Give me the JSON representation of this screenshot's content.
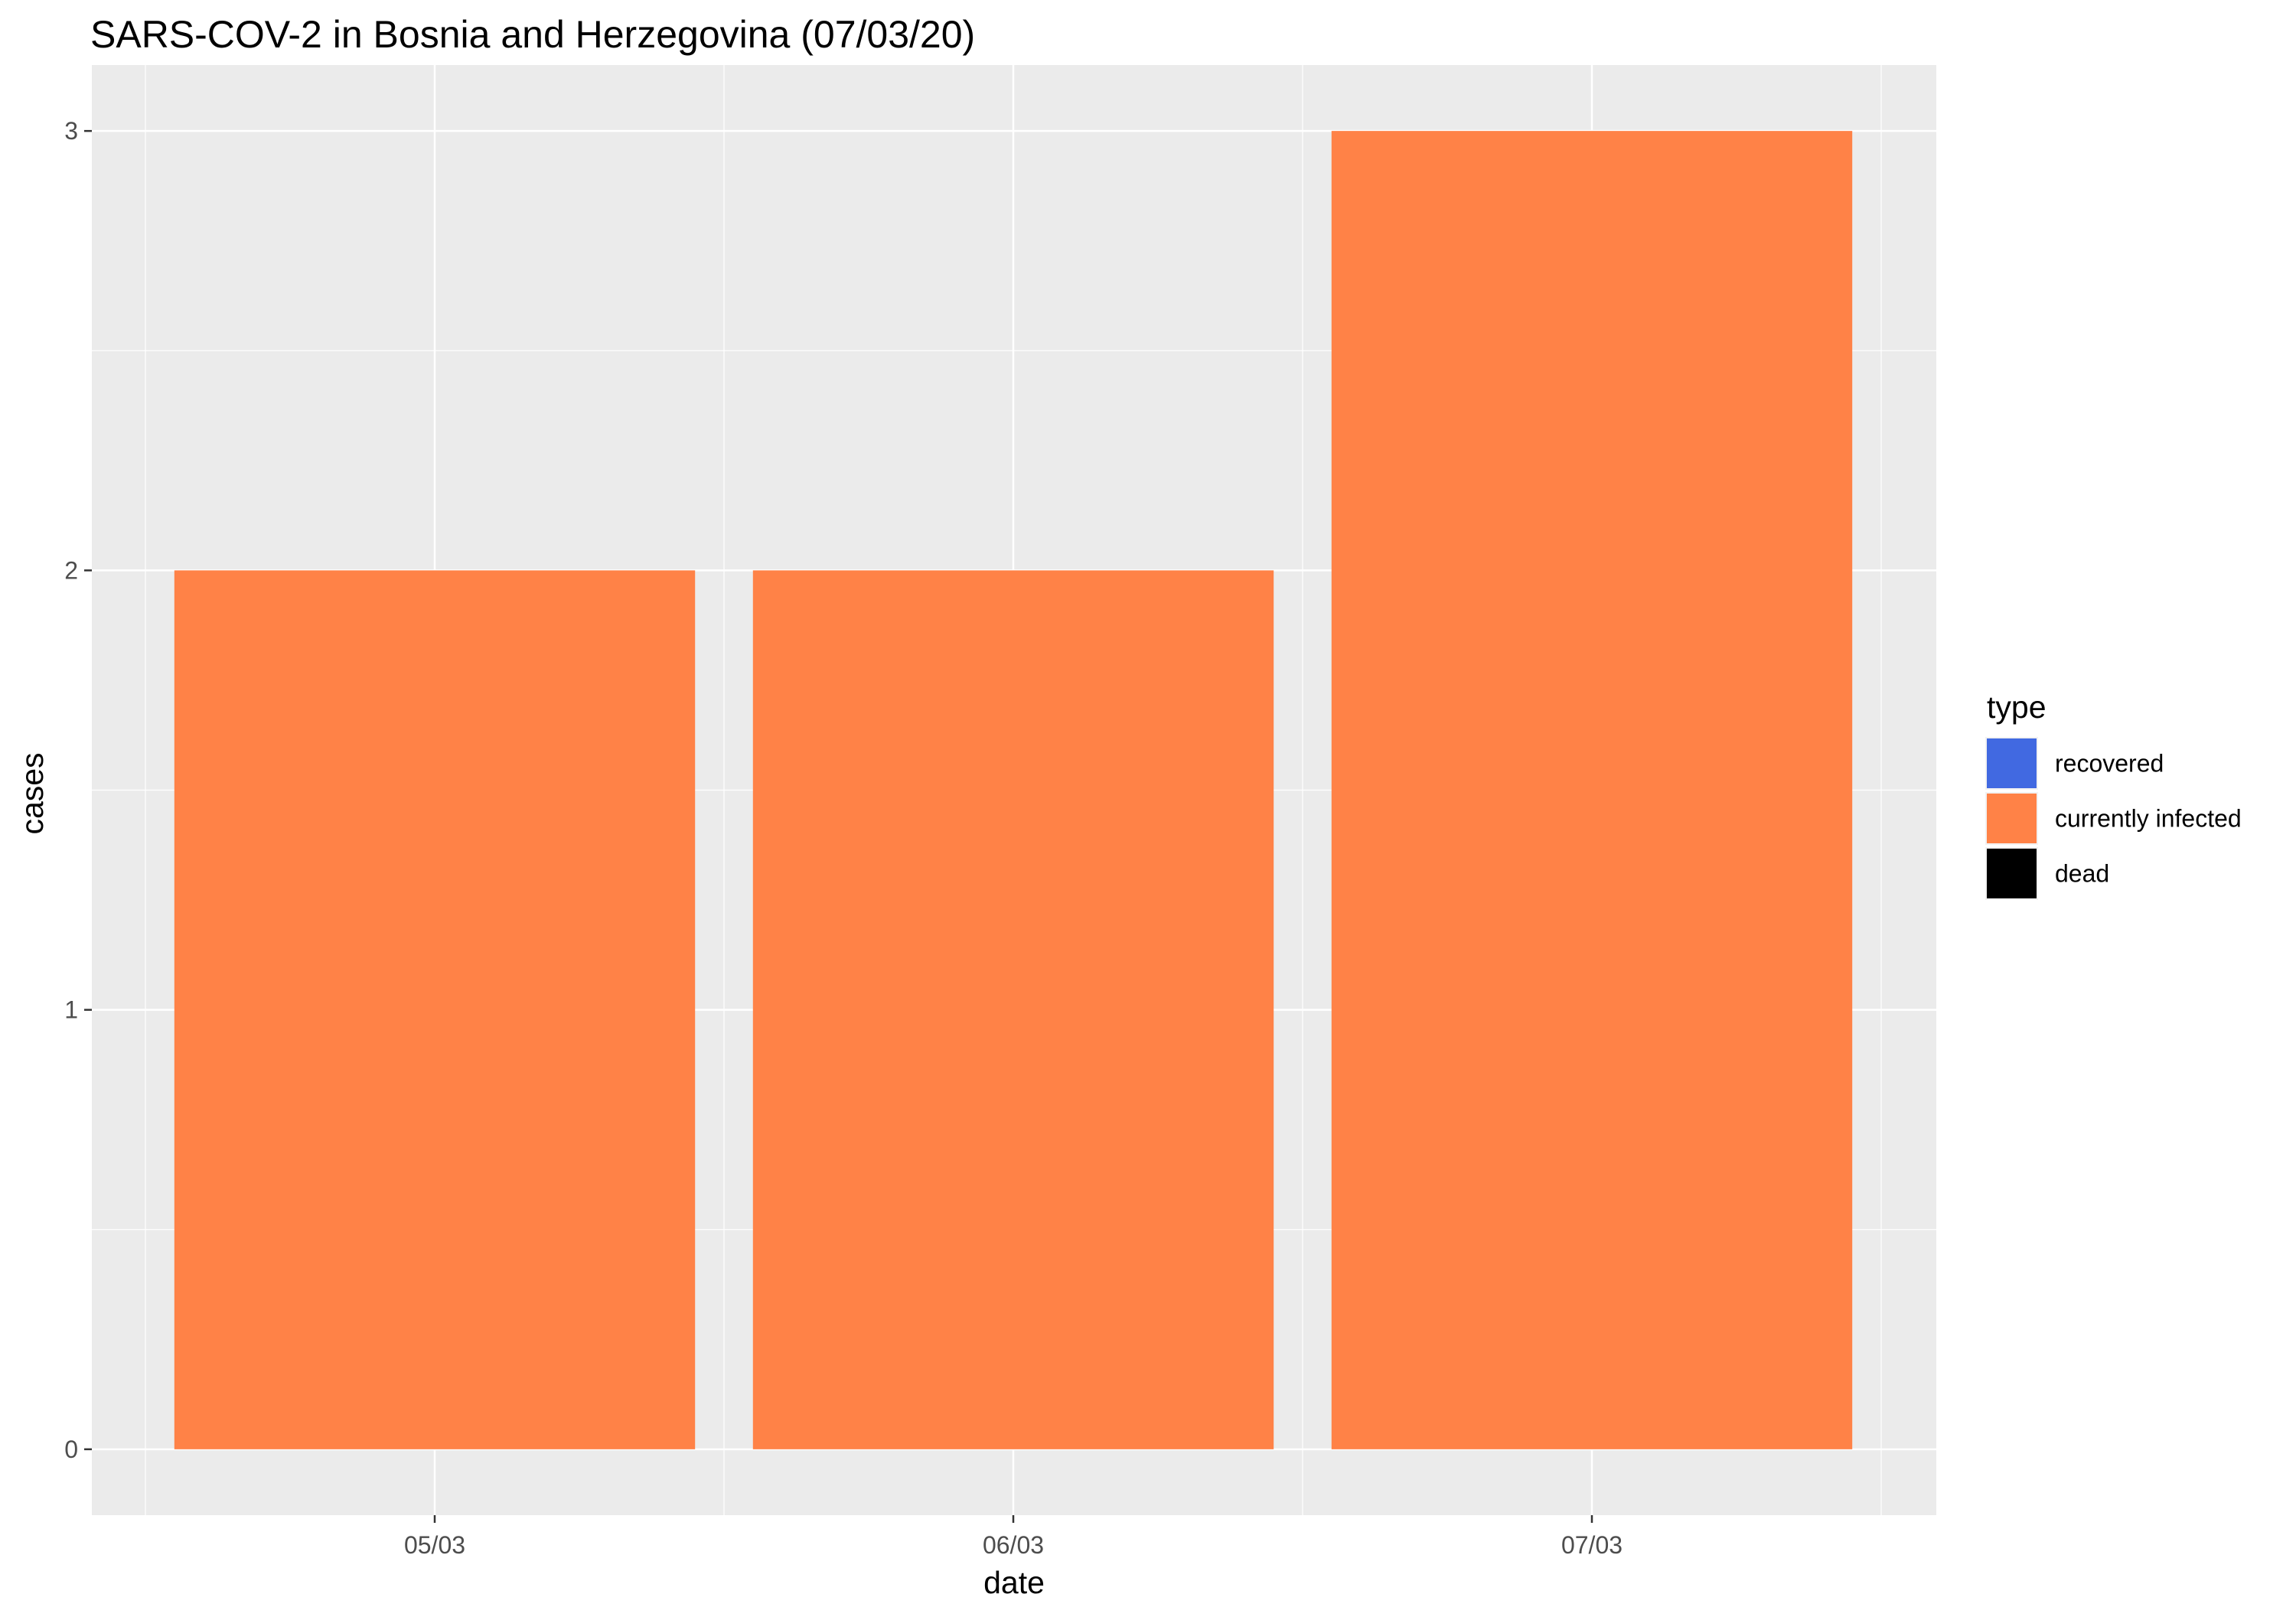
{
  "chart_data": {
    "type": "bar",
    "title": "SARS-COV-2 in Bosnia and Herzegovina (07/03/20)",
    "xlabel": "date",
    "ylabel": "cases",
    "categories": [
      "05/03",
      "06/03",
      "07/03"
    ],
    "series": [
      {
        "name": "recovered",
        "values": [
          0,
          0,
          0
        ],
        "color": "#4169E1"
      },
      {
        "name": "currently infected",
        "values": [
          2,
          2,
          3
        ],
        "color": "#FF8247"
      },
      {
        "name": "dead",
        "values": [
          0,
          0,
          0
        ],
        "color": "#000000"
      }
    ],
    "stacked": true,
    "ylim": [
      -0.15,
      3.15
    ],
    "yticks": [
      0,
      1,
      2,
      3
    ],
    "grid": true,
    "legend": {
      "title": "type",
      "position": "right"
    },
    "panel_background": "#EBEBEB",
    "gridline_color": "#FFFFFF"
  }
}
